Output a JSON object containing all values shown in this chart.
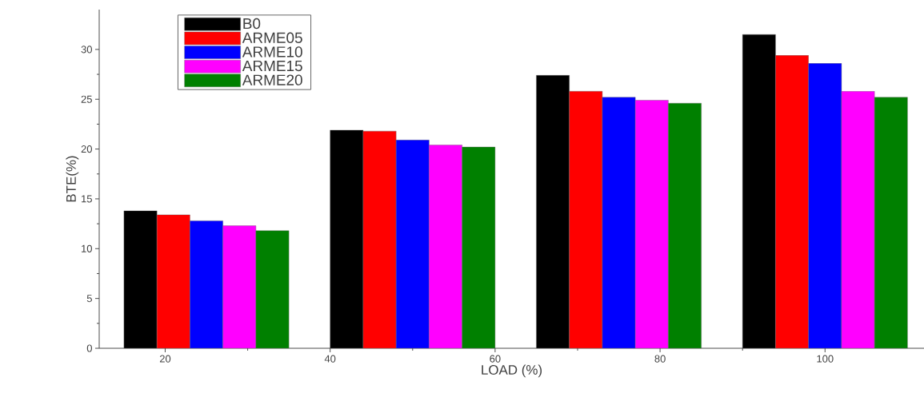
{
  "chart_data": {
    "type": "bar",
    "xlabel": "LOAD (%)",
    "ylabel": "BTE(%)",
    "x": [
      25,
      50,
      75,
      100
    ],
    "series": [
      {
        "name": "B0",
        "color": "#000000",
        "values": [
          13.8,
          21.9,
          27.4,
          31.5
        ]
      },
      {
        "name": "ARME05",
        "color": "#ff0000",
        "values": [
          13.4,
          21.8,
          25.8,
          29.4
        ]
      },
      {
        "name": "ARME10",
        "color": "#0000ff",
        "values": [
          12.8,
          20.9,
          25.2,
          28.6
        ]
      },
      {
        "name": "ARME15",
        "color": "#ff00ff",
        "values": [
          12.3,
          20.4,
          24.9,
          25.8
        ]
      },
      {
        "name": "ARME20",
        "color": "#008000",
        "values": [
          11.8,
          20.2,
          24.6,
          25.2
        ]
      }
    ],
    "xlim": [
      12,
      112
    ],
    "xticks": [
      20,
      40,
      60,
      80,
      100
    ],
    "ylim": [
      0,
      34
    ],
    "yticks": [
      0,
      5,
      10,
      15,
      20,
      25,
      30
    ],
    "legend": "top left",
    "grid": false
  }
}
